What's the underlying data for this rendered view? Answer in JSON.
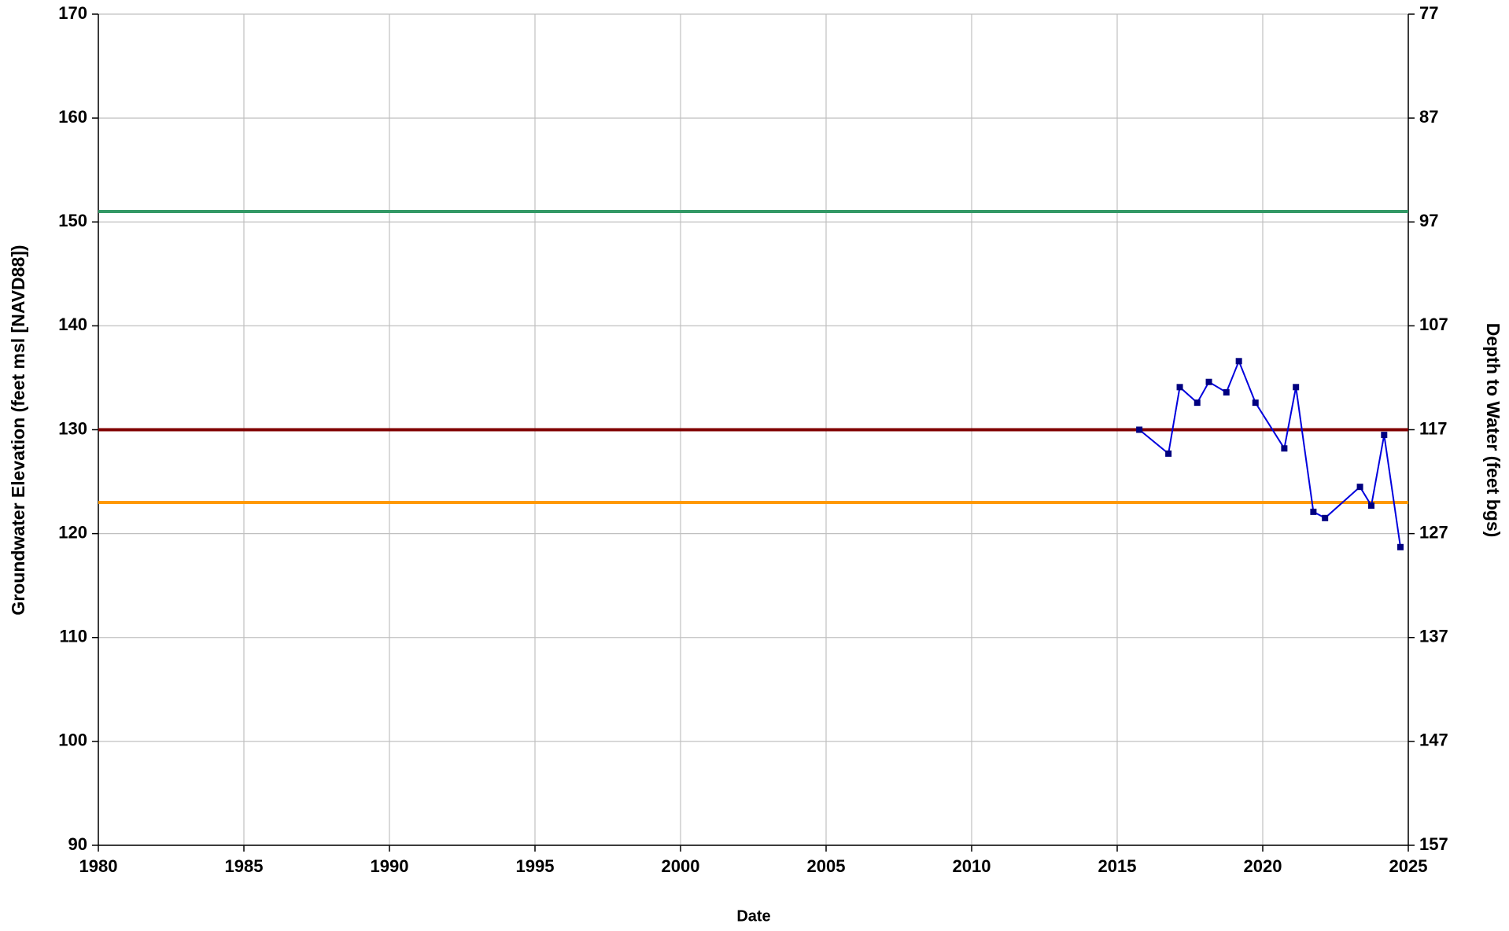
{
  "chart_data": {
    "type": "line",
    "xlabel": "Date",
    "ylabel": "Groundwater Elevation (feet msl [NAVD88])",
    "y2label": "Depth to Water (feet bgs)",
    "x": [
      2015.76,
      2016.76,
      2017.15,
      2017.75,
      2018.15,
      2018.75,
      2019.18,
      2019.75,
      2020.74,
      2021.14,
      2021.74,
      2022.14,
      2023.34,
      2023.73,
      2024.17,
      2024.73
    ],
    "series": [
      {
        "color": "#0000dd",
        "marker_color": "#000080",
        "values": [
          130.0,
          127.7,
          134.1,
          132.6,
          134.6,
          133.6,
          136.6,
          132.6,
          128.2,
          134.1,
          122.1,
          121.5,
          124.5,
          122.7,
          129.5,
          118.7
        ]
      }
    ],
    "reference_lines": [
      {
        "value": 151,
        "color": "#339966"
      },
      {
        "value": 130,
        "color": "#800000"
      },
      {
        "value": 123,
        "color": "#ff9900"
      }
    ],
    "xlim": [
      1980,
      2025
    ],
    "xticks": [
      1980,
      1985,
      1990,
      1995,
      2000,
      2005,
      2010,
      2015,
      2020,
      2025
    ],
    "ylim": [
      90,
      170
    ],
    "yticks": [
      90,
      100,
      110,
      120,
      130,
      140,
      150,
      160,
      170
    ],
    "y2lim": [
      157,
      77
    ],
    "y2ticks": [
      157,
      147,
      137,
      127,
      117,
      107,
      97,
      87,
      77
    ],
    "grid": true
  }
}
